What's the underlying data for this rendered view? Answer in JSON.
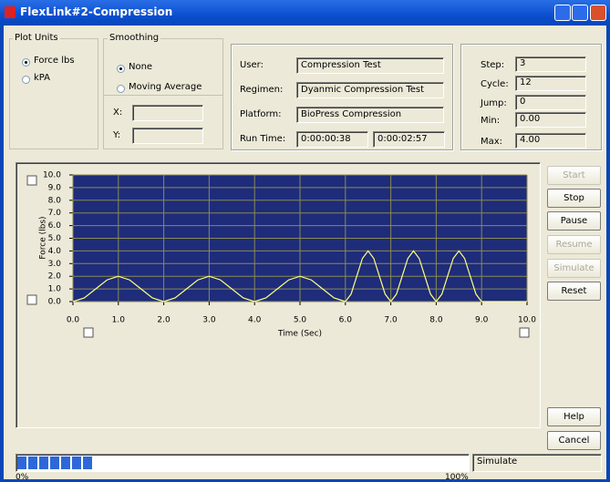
{
  "window": {
    "title": "FlexLink#2-Compression"
  },
  "plot_units": {
    "label": "Plot Units",
    "options": [
      "Force lbs",
      "kPA"
    ],
    "selected_index": 0
  },
  "smoothing": {
    "label": "Smoothing",
    "options": [
      "None",
      "Moving Average"
    ],
    "selected_index": 0,
    "x_label": "X:",
    "y_label": "Y:"
  },
  "info": {
    "rows": [
      [
        "User:",
        "Compression Test"
      ],
      [
        "Regimen:",
        "Dyanmic Compression Test"
      ],
      [
        "Platform:",
        "BioPress Compression"
      ],
      [
        "Run Time:",
        "0:00:00:38",
        "0:00:02:57"
      ]
    ]
  },
  "status": {
    "rows": [
      [
        "Step:",
        "3"
      ],
      [
        "Cycle:",
        "12"
      ],
      [
        "Jump:",
        "0"
      ],
      [
        "Min:",
        "0.00"
      ],
      [
        "Max:",
        "4.00"
      ]
    ]
  },
  "buttons": [
    {
      "label": "Start",
      "enabled": false
    },
    {
      "label": "Stop",
      "enabled": true
    },
    {
      "label": "Pause",
      "enabled": true
    },
    {
      "label": "Resume",
      "enabled": false
    },
    {
      "label": "Simulate",
      "enabled": false
    },
    {
      "label": "Reset",
      "enabled": true
    },
    {
      "label": "Help",
      "enabled": true
    },
    {
      "label": "Cancel",
      "enabled": true
    }
  ],
  "chart_data": {
    "type": "line",
    "x_label": "Time (Sec)",
    "y_label": "Force (lbs)",
    "color": "#ffff80",
    "grid": true,
    "x": [
      0,
      0.25,
      0.5,
      0.75,
      1,
      1.25,
      1.5,
      1.75,
      2,
      2.25,
      2.5,
      2.75,
      3,
      3.25,
      3.5,
      3.75,
      4,
      4.25,
      4.5,
      4.75,
      5,
      5.25,
      5.5,
      5.75,
      6,
      6.125,
      6.25,
      6.375,
      6.5,
      6.625,
      6.75,
      6.875,
      7,
      7.125,
      7.25,
      7.375,
      7.5,
      7.625,
      7.75,
      7.875,
      8,
      8.125,
      8.25,
      8.375,
      8.5,
      8.625,
      8.75,
      8.875,
      9,
      10
    ],
    "values": [
      0,
      0.29,
      1,
      1.71,
      2,
      1.71,
      1,
      0.29,
      0,
      0.29,
      1,
      1.71,
      2,
      1.71,
      1,
      0.29,
      0,
      0.29,
      1,
      1.71,
      2,
      1.71,
      1,
      0.29,
      0,
      0.59,
      2,
      3.41,
      4,
      3.41,
      2,
      0.59,
      0,
      0.59,
      2,
      3.41,
      4,
      3.41,
      2,
      0.59,
      0,
      0.59,
      2,
      3.41,
      4,
      3.41,
      2,
      0.59,
      0,
      0
    ],
    "xlim": [
      0,
      10
    ],
    "ylim": [
      0,
      10
    ],
    "xticks": [
      {
        "value": 0,
        "label": "0.0"
      },
      {
        "value": 1,
        "label": "1.0"
      },
      {
        "value": 2,
        "label": "2.0"
      },
      {
        "value": 3,
        "label": "3.0"
      },
      {
        "value": 4,
        "label": "4.0"
      },
      {
        "value": 5,
        "label": "5.0"
      },
      {
        "value": 6,
        "label": "6.0"
      },
      {
        "value": 7,
        "label": "7.0"
      },
      {
        "value": 8,
        "label": "8.0"
      },
      {
        "value": 9,
        "label": "9.0"
      },
      {
        "value": 10,
        "label": "10.0"
      }
    ],
    "yticks": [
      {
        "value": 0,
        "label": "0.0"
      },
      {
        "value": 1,
        "label": "1.0"
      },
      {
        "value": 2,
        "label": "2.0"
      },
      {
        "value": 3,
        "label": "3.0"
      },
      {
        "value": 4,
        "label": "4.0"
      },
      {
        "value": 5,
        "label": "5.0"
      },
      {
        "value": 6,
        "label": "6.0"
      },
      {
        "value": 7,
        "label": "7.0"
      },
      {
        "value": 8,
        "label": "8.0"
      },
      {
        "value": 9,
        "label": "9.0"
      },
      {
        "value": 10,
        "label": "10.0"
      }
    ]
  },
  "progress": {
    "value": 17,
    "start_label": "0%",
    "end_label": "100%"
  },
  "status_bar": "Simulate"
}
